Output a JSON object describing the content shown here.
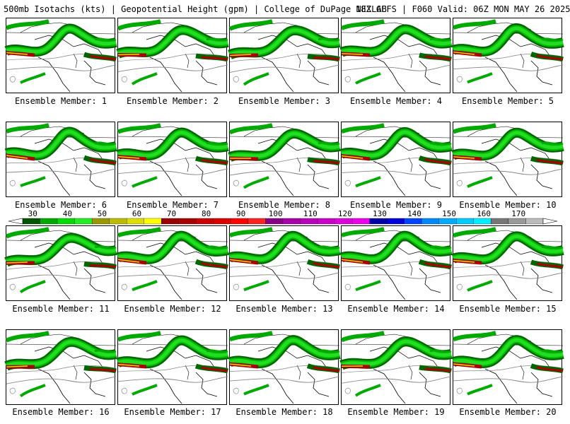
{
  "header": {
    "title_left": "500mb Isotachs (kts) | Geopotential Height (gpm) | College of DuPage NEXLAB",
    "title_right": "18Z GEFS | F060 Valid: 06Z MON MAY 26 2025"
  },
  "members": [
    "Ensemble Member: 1",
    "Ensemble Member: 2",
    "Ensemble Member: 3",
    "Ensemble Member: 4",
    "Ensemble Member: 5",
    "Ensemble Member: 6",
    "Ensemble Member: 7",
    "Ensemble Member: 8",
    "Ensemble Member: 9",
    "Ensemble Member: 10",
    "Ensemble Member: 11",
    "Ensemble Member: 12",
    "Ensemble Member: 13",
    "Ensemble Member: 14",
    "Ensemble Member: 15",
    "Ensemble Member: 16",
    "Ensemble Member: 17",
    "Ensemble Member: 18",
    "Ensemble Member: 19",
    "Ensemble Member: 20"
  ],
  "colorbar": {
    "tick_labels": [
      "30",
      "40",
      "50",
      "60",
      "70",
      "80",
      "90",
      "100",
      "110",
      "120",
      "130",
      "140",
      "150",
      "160",
      "170"
    ],
    "colors": [
      "#005500",
      "#00aa00",
      "#00dd00",
      "#22ee22",
      "#999900",
      "#bbbb00",
      "#dddd00",
      "#ffff00",
      "#990000",
      "#aa0000",
      "#cc0000",
      "#dd0000",
      "#ff0000",
      "#ff2222",
      "#880088",
      "#aa00aa",
      "#bb00bb",
      "#cc00cc",
      "#dd00dd",
      "#ee00ee",
      "#0000aa",
      "#0000dd",
      "#0044ff",
      "#0088ff",
      "#00aaff",
      "#00ccff",
      "#00eeff",
      "#777777",
      "#999999",
      "#bbbbbb"
    ]
  }
}
